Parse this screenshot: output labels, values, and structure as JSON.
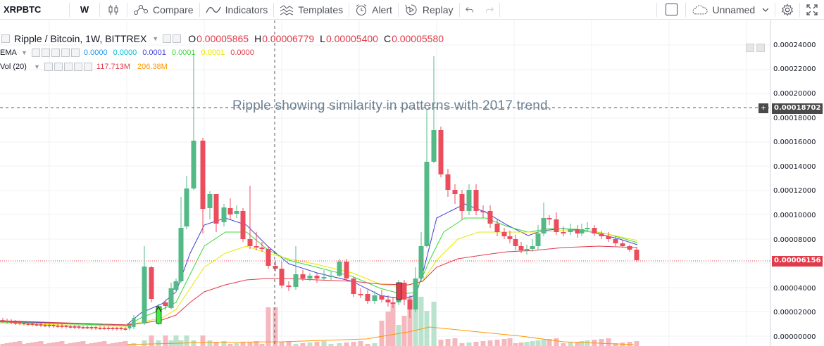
{
  "toolbar": {
    "symbol": "XRPBTC",
    "interval": "W",
    "compare": "Compare",
    "indicators": "Indicators",
    "templates": "Templates",
    "alert": "Alert",
    "replay": "Replay",
    "layout_name": "Unnamed"
  },
  "legend": {
    "title": "Ripple / Bitcoin, 1W, BITTREX",
    "open_label": "O",
    "open": "0.00005865",
    "high_label": "H",
    "high": "0.00006779",
    "low_label": "L",
    "low": "0.00005400",
    "close_label": "C",
    "close": "0.00005580",
    "ema": {
      "name": "EMA",
      "values": [
        {
          "text": "0.0000",
          "color": "#2196f3"
        },
        {
          "text": "0.0000",
          "color": "#00bcd4"
        },
        {
          "text": "0.0001",
          "color": "#3f3fd9"
        },
        {
          "text": "0.0001",
          "color": "#3bd93b"
        },
        {
          "text": "0.0001",
          "color": "#e8e800"
        },
        {
          "text": "0.0000",
          "color": "#e03b4a"
        }
      ]
    },
    "vol": {
      "name": "Vol (20)",
      "v1": "117.713M",
      "v1_color": "#e03b4a",
      "v2": "206.38M",
      "v2_color": "#ff9800"
    }
  },
  "annotation": "Ripple showing similarity in patterns with 2017 trend.",
  "price_axis": {
    "labels": [
      "0.00024000",
      "0.00022000",
      "0.00020000",
      "0.00018000",
      "0.00016000",
      "0.00014000",
      "0.00012000",
      "0.00010000",
      "0.00008000",
      "0.00004000",
      "0.00002000",
      "0.00000000"
    ],
    "crosshair_price": "0.00018702",
    "last_price": "0.00006156"
  },
  "colors": {
    "up": "#53b987",
    "down": "#eb4d5c",
    "vol_up": "#b9e3cd",
    "vol_down": "#f5b8be",
    "last_price_tag": "#e03b4a",
    "crosshair_tag": "#4a4a4a"
  }
}
